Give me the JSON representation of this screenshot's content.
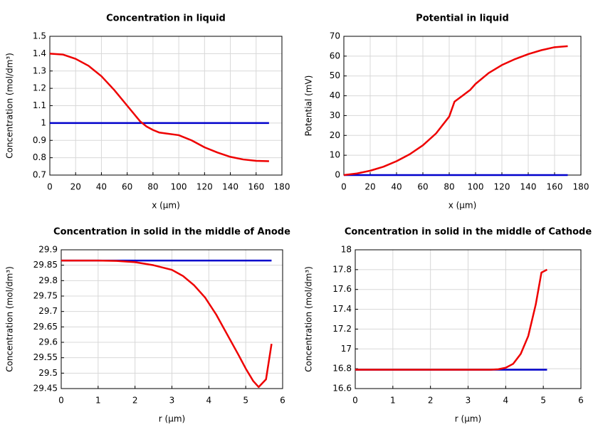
{
  "chart_data": [
    {
      "type": "line",
      "title": "Concentration in liquid",
      "x_label": "x (µm)",
      "y_label": "Concentration (mol/dm³)",
      "xlim": [
        0,
        180
      ],
      "xticks": [
        0,
        20,
        40,
        60,
        80,
        100,
        120,
        140,
        160,
        180
      ],
      "ylim": [
        0.7,
        1.5
      ],
      "yticks": [
        0.7,
        0.8,
        0.9,
        1,
        1.1,
        1.2,
        1.3,
        1.4,
        1.5
      ],
      "grid": true,
      "series": [
        {
          "color": "#0000cc",
          "x": [
            0,
            170
          ],
          "values": [
            1,
            1
          ]
        },
        {
          "color": "#ee0000",
          "x": [
            0,
            10,
            20,
            30,
            40,
            50,
            60,
            70,
            75,
            80,
            85,
            90,
            100,
            110,
            120,
            130,
            140,
            150,
            160,
            170
          ],
          "values": [
            1.4,
            1.395,
            1.37,
            1.33,
            1.27,
            1.19,
            1.1,
            1.01,
            0.98,
            0.96,
            0.945,
            0.94,
            0.93,
            0.9,
            0.86,
            0.83,
            0.805,
            0.79,
            0.782,
            0.78
          ]
        }
      ]
    },
    {
      "type": "line",
      "title": "Potential in liquid",
      "x_label": "x (µm)",
      "y_label": "Potential (mV)",
      "xlim": [
        0,
        180
      ],
      "xticks": [
        0,
        20,
        40,
        60,
        80,
        100,
        120,
        140,
        160,
        180
      ],
      "ylim": [
        0,
        70
      ],
      "yticks": [
        0,
        10,
        20,
        30,
        40,
        50,
        60,
        70
      ],
      "grid": true,
      "series": [
        {
          "color": "#0000cc",
          "x": [
            0,
            170
          ],
          "values": [
            0,
            0
          ]
        },
        {
          "color": "#ee0000",
          "x": [
            0,
            10,
            20,
            30,
            40,
            50,
            60,
            70,
            80,
            84,
            90,
            96,
            100,
            110,
            120,
            130,
            140,
            150,
            160,
            170
          ],
          "values": [
            0,
            0.8,
            2.2,
            4.2,
            7,
            10.5,
            15,
            21,
            29.5,
            37,
            40,
            43,
            46,
            51.5,
            55.5,
            58.5,
            61,
            63,
            64.5,
            65
          ]
        }
      ]
    },
    {
      "type": "line",
      "title": "Concentration in solid in the middle of Anode",
      "x_label": "r (µm)",
      "y_label": "Concentration (mol/dm³)",
      "xlim": [
        0,
        6
      ],
      "xticks": [
        0,
        1,
        2,
        3,
        4,
        5,
        6
      ],
      "ylim": [
        29.45,
        29.9
      ],
      "yticks": [
        29.45,
        29.5,
        29.55,
        29.6,
        29.65,
        29.7,
        29.75,
        29.8,
        29.85,
        29.9
      ],
      "grid": true,
      "series": [
        {
          "color": "#0000cc",
          "x": [
            0,
            5.7
          ],
          "values": [
            29.865,
            29.865
          ]
        },
        {
          "color": "#ee0000",
          "x": [
            0,
            0.5,
            1,
            1.5,
            2,
            2.5,
            3,
            3.3,
            3.6,
            3.9,
            4.2,
            4.5,
            4.8,
            5,
            5.2,
            5.35,
            5.55,
            5.7
          ],
          "values": [
            29.865,
            29.865,
            29.865,
            29.864,
            29.86,
            29.85,
            29.835,
            29.815,
            29.785,
            29.745,
            29.69,
            29.625,
            29.56,
            29.515,
            29.475,
            29.455,
            29.48,
            29.595
          ]
        }
      ]
    },
    {
      "type": "line",
      "title": "Concentration in solid in the middle of Cathode",
      "x_label": "r (µm)",
      "y_label": "Concentration (mol/dm³)",
      "xlim": [
        0,
        6
      ],
      "xticks": [
        0,
        1,
        2,
        3,
        4,
        5,
        6
      ],
      "ylim": [
        16.6,
        18
      ],
      "yticks": [
        16.6,
        16.8,
        17,
        17.2,
        17.4,
        17.6,
        17.8,
        18
      ],
      "grid": true,
      "series": [
        {
          "color": "#0000cc",
          "x": [
            0,
            5.1
          ],
          "values": [
            16.79,
            16.79
          ]
        },
        {
          "color": "#ee0000",
          "x": [
            0,
            1,
            2,
            3,
            3.6,
            3.8,
            4,
            4.2,
            4.4,
            4.6,
            4.8,
            4.95,
            5.1
          ],
          "values": [
            16.79,
            16.79,
            16.79,
            16.79,
            16.79,
            16.795,
            16.81,
            16.85,
            16.95,
            17.13,
            17.45,
            17.77,
            17.8
          ]
        }
      ]
    }
  ]
}
